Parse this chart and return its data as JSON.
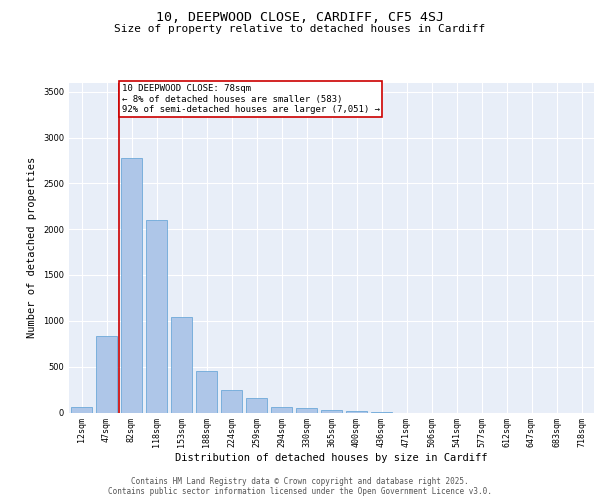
{
  "title1": "10, DEEPWOOD CLOSE, CARDIFF, CF5 4SJ",
  "title2": "Size of property relative to detached houses in Cardiff",
  "xlabel": "Distribution of detached houses by size in Cardiff",
  "ylabel": "Number of detached properties",
  "categories": [
    "12sqm",
    "47sqm",
    "82sqm",
    "118sqm",
    "153sqm",
    "188sqm",
    "224sqm",
    "259sqm",
    "294sqm",
    "330sqm",
    "365sqm",
    "400sqm",
    "436sqm",
    "471sqm",
    "506sqm",
    "541sqm",
    "577sqm",
    "612sqm",
    "647sqm",
    "683sqm",
    "718sqm"
  ],
  "bar_values": [
    55,
    840,
    2780,
    2105,
    1040,
    450,
    245,
    155,
    55,
    45,
    30,
    15,
    5,
    0,
    0,
    0,
    0,
    0,
    0,
    0,
    0
  ],
  "bar_color": "#aec6e8",
  "bar_edgecolor": "#5a9fd4",
  "property_line_label": "10 DEEPWOOD CLOSE: 78sqm",
  "annotation_line1": "← 8% of detached houses are smaller (583)",
  "annotation_line2": "92% of semi-detached houses are larger (7,051) →",
  "annotation_box_color": "#ffffff",
  "annotation_box_edgecolor": "#cc0000",
  "vline_color": "#cc0000",
  "vline_x_index": 1.5,
  "ylim": [
    0,
    3600
  ],
  "yticks": [
    0,
    500,
    1000,
    1500,
    2000,
    2500,
    3000,
    3500
  ],
  "bg_color": "#e8eef8",
  "grid_color": "#ffffff",
  "footer1": "Contains HM Land Registry data © Crown copyright and database right 2025.",
  "footer2": "Contains public sector information licensed under the Open Government Licence v3.0.",
  "title_fontsize": 9.5,
  "subtitle_fontsize": 8,
  "tick_fontsize": 6,
  "label_fontsize": 7.5,
  "annotation_fontsize": 6.5,
  "footer_fontsize": 5.5
}
